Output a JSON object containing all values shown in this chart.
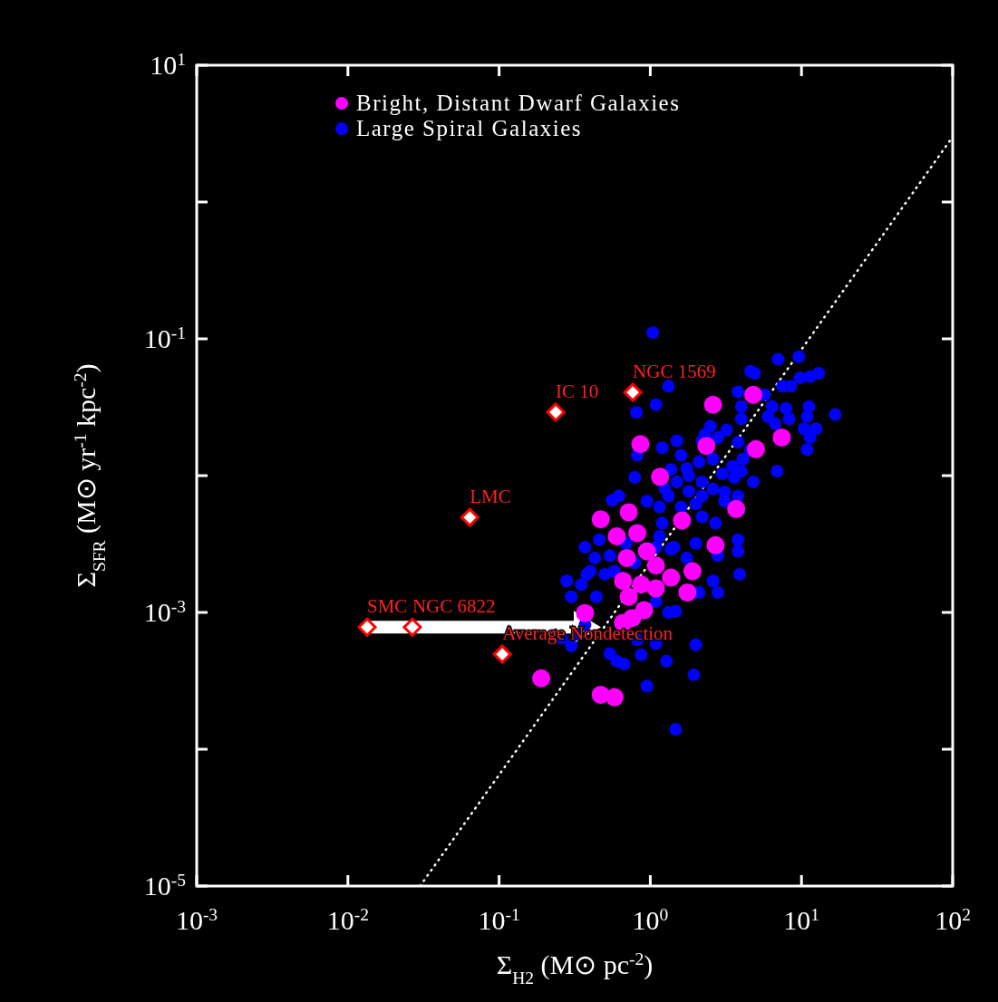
{
  "chart_data": {
    "type": "scatter",
    "xlabel": "Σ$_{H2}$ (M⊙ pc$^{-2}$)",
    "ylabel": "Σ$_{SFR}$ (M⊙ yr$^{-1}$ kpc$^{-2}$)",
    "log": "xy",
    "xlim": [
      0.001,
      100
    ],
    "ylim": [
      1e-05,
      10
    ],
    "xticks": [
      {
        "value": 0.001,
        "label": "10$^{-3}$"
      },
      {
        "value": 0.01,
        "label": "10$^{-2}$"
      },
      {
        "value": 0.1,
        "label": "10$^{-1}$"
      },
      {
        "value": 1,
        "label": "10$^{0}$"
      },
      {
        "value": 10,
        "label": "10$^{1}$"
      },
      {
        "value": 100,
        "label": "10$^{2}$"
      }
    ],
    "yticks": [
      {
        "value": 1e-05,
        "label": "10$^{-5}$"
      },
      {
        "value": 0.0001,
        "label": null
      },
      {
        "value": 0.001,
        "label": "10$^{-3}$"
      },
      {
        "value": 0.01,
        "label": null
      },
      {
        "value": 0.1,
        "label": "10$^{-1}$"
      },
      {
        "value": 1,
        "label": null
      },
      {
        "value": 10,
        "label": "10$^{1}$"
      }
    ],
    "grid": false,
    "legend": "top left",
    "marker": "circle",
    "series": [
      {
        "name": "Large Spiral Galaxies",
        "color": "#0000ff",
        "x": [
          1.04,
          1.32,
          1.09,
          0.81,
          4.6,
          4.9,
          7.0,
          9.6,
          13,
          11.4,
          9.8,
          8.5,
          7.5,
          3.8,
          5.7,
          4.0,
          6.4,
          7.9,
          11.2,
          16.7,
          6.0,
          6.7,
          8.3,
          10.9,
          12.5,
          10.4,
          11.4,
          10.9,
          4.0,
          2.5,
          3.2,
          2.3,
          2.8,
          2.2,
          3.8,
          4.6,
          4.1,
          6.9,
          1.2,
          1.5,
          1.6,
          0.82,
          1.37,
          1.74,
          2.1,
          2.6,
          3.5,
          4.0,
          1.8,
          3.0,
          0.79,
          1.5,
          2.2,
          3.6,
          4.8,
          1.25,
          1.8,
          2.6,
          0.62,
          0.56,
          0.95,
          1.32,
          2.2,
          3.1,
          1.15,
          1.6,
          2.0,
          3.1,
          3.8,
          2.2,
          2.7,
          1.2,
          0.37,
          0.46,
          0.54,
          1.09,
          1.37,
          2.0,
          1.74,
          2.8,
          3.8,
          3.8,
          3.9,
          0.4,
          0.5,
          0.35,
          2.6,
          0.44,
          0.58,
          0.38,
          2.8,
          2.1,
          1.15,
          1.43,
          1.09,
          1.32,
          1.47,
          2.0,
          1.09,
          0.87,
          1.28,
          0.6,
          0.67,
          0.54,
          0.95,
          1.94,
          1.47,
          0.3,
          0.82,
          0.33,
          0.37,
          0.26,
          0.3,
          0.28,
          0.43,
          0.79,
          0.69
        ],
        "values": [
          0.111,
          0.045,
          0.033,
          0.029,
          0.058,
          0.056,
          0.071,
          0.074,
          0.056,
          0.053,
          0.052,
          0.045,
          0.045,
          0.041,
          0.039,
          0.032,
          0.032,
          0.031,
          0.032,
          0.028,
          0.027,
          0.024,
          0.026,
          0.027,
          0.022,
          0.022,
          0.019,
          0.0155,
          0.026,
          0.023,
          0.0215,
          0.02,
          0.019,
          0.018,
          0.0176,
          0.0154,
          0.0132,
          0.0108,
          0.016,
          0.018,
          0.0141,
          0.0141,
          0.0111,
          0.0113,
          0.0126,
          0.0132,
          0.0117,
          0.0108,
          0.01,
          0.0103,
          0.0097,
          0.009,
          0.009,
          0.0097,
          0.009,
          0.008,
          0.0077,
          0.008,
          0.0071,
          0.0066,
          0.0065,
          0.0071,
          0.0071,
          0.0076,
          0.0059,
          0.0059,
          0.0062,
          0.0065,
          0.0071,
          0.005,
          0.0045,
          0.0045,
          0.003,
          0.0034,
          0.0026,
          0.003,
          0.0029,
          0.0032,
          0.0025,
          0.0026,
          0.0034,
          0.0028,
          0.0019,
          0.002,
          0.0019,
          0.0016,
          0.0017,
          0.0013,
          0.002,
          0.0019,
          0.0014,
          0.0014,
          0.0036,
          0.003,
          0.0012,
          0.001,
          0.00102,
          0.00058,
          0.00059,
          0.00049,
          0.00044,
          0.00044,
          0.00042,
          0.0005,
          0.00029,
          0.00035,
          0.00014,
          0.00057,
          0.00063,
          0.00069,
          0.00081,
          0.00065,
          0.0013,
          0.0017,
          0.0025,
          0.0023,
          0.0032
        ]
      },
      {
        "name": "Bright, Distant Dwarf Galaxies",
        "color": "#ff00ff",
        "x": [
          4.8,
          2.6,
          0.86,
          2.35,
          7.4,
          5.0,
          1.16,
          3.7,
          1.62,
          0.47,
          0.72,
          0.6,
          0.82,
          2.7,
          0.95,
          0.7,
          1.9,
          1.76,
          1.09,
          1.37,
          0.66,
          0.72,
          0.87,
          1.09,
          0.91,
          0.76,
          0.66,
          0.37,
          0.19,
          0.47,
          0.58
        ],
        "values": [
          0.039,
          0.033,
          0.017,
          0.0165,
          0.019,
          0.0156,
          0.0098,
          0.0057,
          0.0047,
          0.0048,
          0.0054,
          0.0036,
          0.0038,
          0.0031,
          0.0028,
          0.0025,
          0.002,
          0.0014,
          0.0022,
          0.0018,
          0.0017,
          0.0013,
          0.0016,
          0.0015,
          0.00104,
          0.00091,
          0.00084,
          0.00099,
          0.00033,
          0.00025,
          0.00024
        ]
      },
      {
        "color": "#ff0000",
        "marker": "diamond",
        "x": [
          0.0134,
          0.0267,
          0.064,
          0.237,
          0.766,
          0.105
        ],
        "values": [
          0.00078,
          0.00078,
          0.00495,
          0.0291,
          0.0406,
          0.000495
        ]
      },
      {
        "type": "line",
        "color": "#ffffff",
        "line_style": "dotted",
        "marker": "none",
        "x": [
          0.03,
          100
        ],
        "values": [
          1e-05,
          3.0
        ]
      }
    ],
    "annotations": [
      {
        "text": "SMC",
        "x": 0.0134,
        "y": 0.00078
      },
      {
        "text": "NGC 6822",
        "x": 0.0267,
        "y": 0.00078
      },
      {
        "text": "LMC",
        "x": 0.064,
        "y": 0.00495
      },
      {
        "text": "IC 10",
        "x": 0.237,
        "y": 0.0291
      },
      {
        "text": "NGC 1569",
        "x": 0.766,
        "y": 0.0406
      },
      {
        "text": "Average Nondetection",
        "x": 0.105,
        "y": 0.000495
      }
    ]
  }
}
